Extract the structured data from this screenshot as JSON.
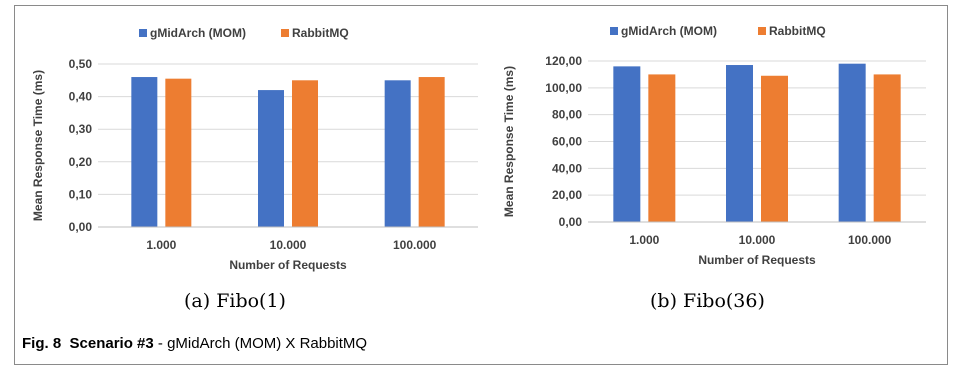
{
  "figure": {
    "subcaptions": [
      "(a)  Fibo(1)",
      "(b)  Fibo(36)"
    ],
    "caption_label": "Fig. 8",
    "caption_scenario": "Scenario #3",
    "caption_text": " - gMidArch (MOM) X RabbitMQ"
  },
  "colors": {
    "gmidarch": "#4472c4",
    "rabbitmq": "#ed7d31",
    "grid": "#d9d9d9",
    "axis": "#bfbfbf",
    "text": "#404040"
  },
  "chart_data": [
    {
      "type": "bar",
      "title": "",
      "categories": [
        "1.000",
        "10.000",
        "100.000"
      ],
      "series": [
        {
          "name": "gMidArch (MOM)",
          "values": [
            0.46,
            0.42,
            0.45
          ]
        },
        {
          "name": "RabbitMQ",
          "values": [
            0.455,
            0.45,
            0.46
          ]
        }
      ],
      "xlabel": "Number of Requests",
      "ylabel": "Mean Response Time (ms)",
      "ylim": [
        0,
        0.5
      ],
      "yticks": [
        "0,00",
        "0,10",
        "0,20",
        "0,30",
        "0,40",
        "0,50"
      ],
      "grid": true,
      "legend": "top-center"
    },
    {
      "type": "bar",
      "title": "",
      "categories": [
        "1.000",
        "10.000",
        "100.000"
      ],
      "series": [
        {
          "name": "gMidArch (MOM)",
          "values": [
            116,
            117,
            118
          ]
        },
        {
          "name": "RabbitMQ",
          "values": [
            110,
            109,
            110
          ]
        }
      ],
      "xlabel": "Number of Requests",
      "ylabel": "Mean Response Time (ms)",
      "ylim": [
        0,
        120
      ],
      "yticks": [
        "0,00",
        "20,00",
        "40,00",
        "60,00",
        "80,00",
        "100,00",
        "120,00"
      ],
      "grid": true,
      "legend": "top-center"
    }
  ]
}
